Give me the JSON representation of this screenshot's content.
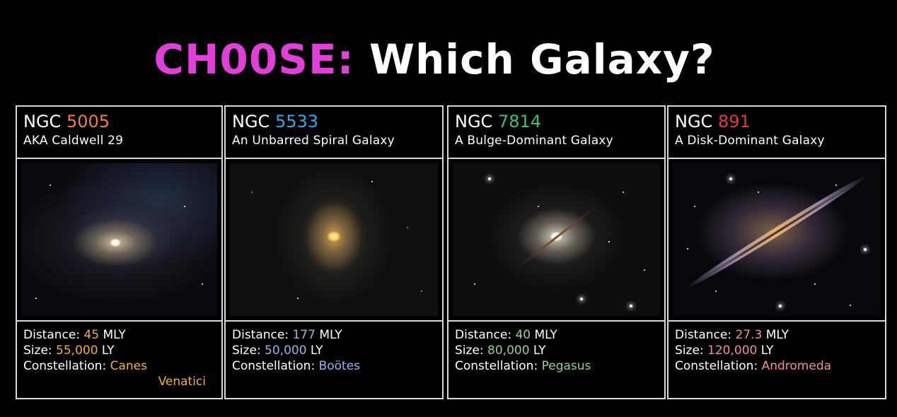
{
  "title": {
    "choose": "CH00SE:",
    "rest": "Which Galaxy?"
  },
  "colors": {
    "choose": "#e040d8"
  },
  "cards": [
    {
      "ngc_prefix": "NGC",
      "ngc_number": "5005",
      "number_color": "#f08040",
      "subtitle": "AKA Caldwell 29",
      "distance_label": "Distance:",
      "distance_value": "45",
      "distance_unit": "MLY",
      "size_label": "Size:",
      "size_value": "55,000",
      "size_unit": "LY",
      "constellation_label": "Constellation:",
      "constellation_value": "Canes",
      "constellation_value2": "Venatici",
      "value_color": "#f0b030"
    },
    {
      "ngc_prefix": "NGC",
      "ngc_number": "5533",
      "number_color": "#3aa8e8",
      "subtitle": "An Unbarred Spiral Galaxy",
      "distance_label": "Distance:",
      "distance_value": "177",
      "distance_unit": "MLY",
      "size_label": "Size:",
      "size_value": "50,000",
      "size_unit": "LY",
      "constellation_label": "Constellation:",
      "constellation_value": "Boötes",
      "value_color": "#8fb8e8"
    },
    {
      "ngc_prefix": "NGC",
      "ngc_number": "7814",
      "number_color": "#3cc070",
      "subtitle": "A Bulge-Dominant Galaxy",
      "distance_label": "Distance:",
      "distance_value": "40",
      "distance_unit": "MLY",
      "size_label": "Size:",
      "size_value": "80,000",
      "size_unit": "LY",
      "constellation_label": "Constellation:",
      "constellation_value": "Pegasus",
      "value_color": "#90d090"
    },
    {
      "ngc_prefix": "NGC",
      "ngc_number": "891",
      "number_color": "#e03a3a",
      "subtitle": "A Disk-Dominant Galaxy",
      "distance_label": "Distance:",
      "distance_value": "27.3",
      "distance_unit": "MLY",
      "size_label": "Size:",
      "size_value": "120,000",
      "size_unit": "LY",
      "constellation_label": "Constellation:",
      "constellation_value": "Andromeda",
      "value_color": "#f09090"
    }
  ]
}
